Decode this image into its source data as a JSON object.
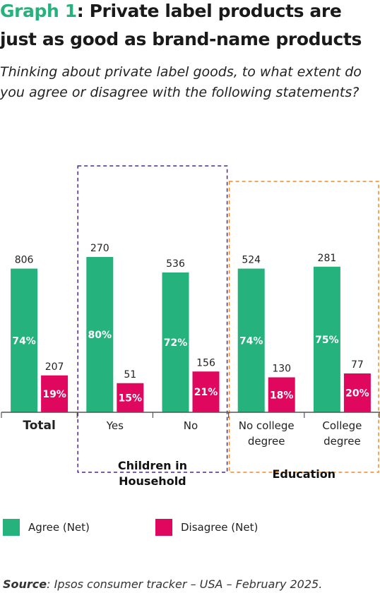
{
  "title": {
    "accent": "Graph 1",
    "rest": ": Private label products are just as good as brand-name products"
  },
  "subtitle": "Thinking about private label goods, to what extent do you agree or disagree with the following statements?",
  "colors": {
    "agree": "#25b27d",
    "disagree": "#e0075f",
    "children_box": "#4a2a8c",
    "education_box": "#f08a24"
  },
  "chart_data": {
    "type": "bar",
    "categories": [
      "Total",
      "Yes",
      "No",
      "No college degree",
      "College degree"
    ],
    "series": [
      {
        "name": "Agree (Net)",
        "values": [
          74,
          80,
          72,
          74,
          75
        ],
        "value_labels": [
          "74%",
          "80%",
          "72%",
          "74%",
          "75%"
        ],
        "base_sizes": [
          "806",
          "270",
          "536",
          "524",
          "281"
        ]
      },
      {
        "name": "Disagree (Net)",
        "values": [
          19,
          15,
          21,
          18,
          20
        ],
        "value_labels": [
          "19%",
          "15%",
          "21%",
          "18%",
          "20%"
        ],
        "base_sizes": [
          "207",
          "51",
          "156",
          "130",
          "77"
        ]
      }
    ],
    "category_labels": [
      [
        "Total"
      ],
      [
        "Yes"
      ],
      [
        "No"
      ],
      [
        "No college",
        "degree"
      ],
      [
        "College",
        "degree"
      ]
    ],
    "groups": [
      {
        "label_lines": [
          "Children in",
          "Household"
        ],
        "categories": [
          1,
          2
        ]
      },
      {
        "label_lines": [
          "Education"
        ],
        "categories": [
          3,
          4
        ]
      }
    ],
    "ylim": [
      0,
      100
    ],
    "legend_position": "bottom-left"
  },
  "legend": [
    {
      "label": "Agree (Net)",
      "color": "#25b27d"
    },
    {
      "label": "Disagree (Net)",
      "color": "#e0075f"
    }
  ],
  "source": {
    "label": "Source",
    "text": ": Ipsos consumer tracker – USA – February 2025."
  }
}
